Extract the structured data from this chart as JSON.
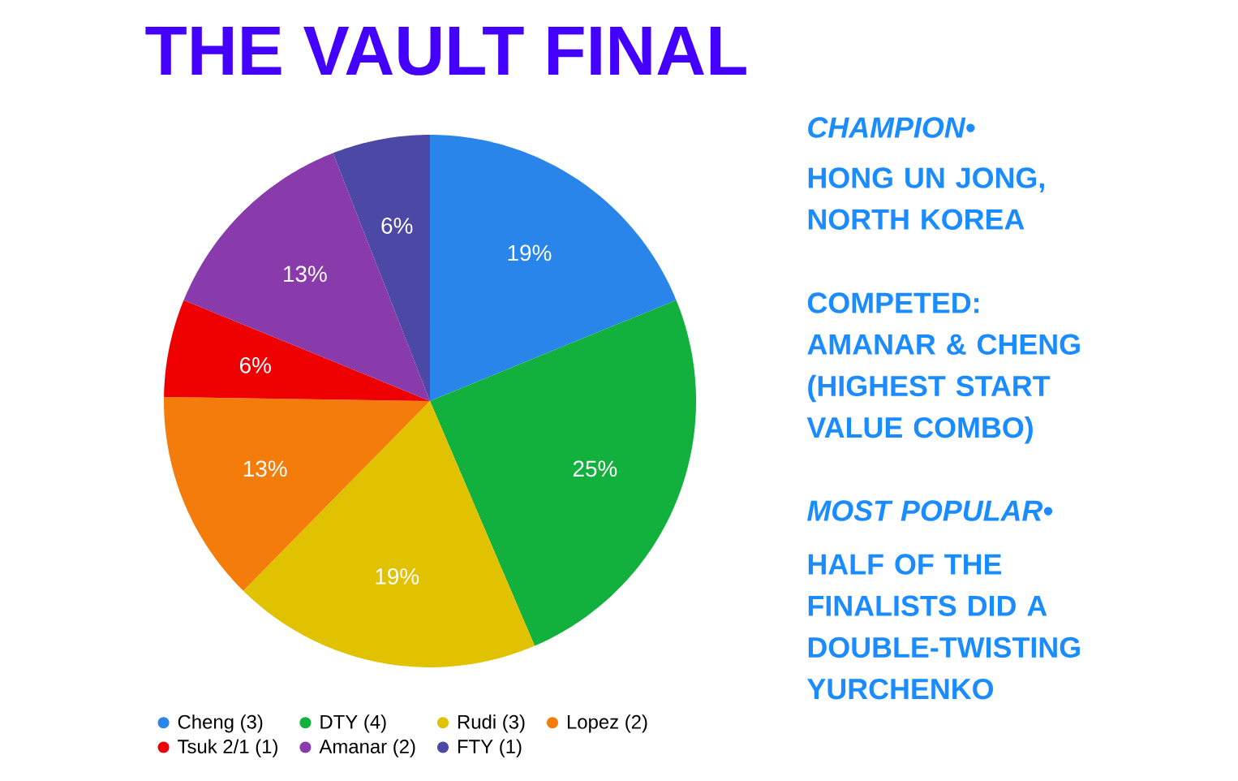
{
  "chart_data": {
    "type": "pie",
    "title": "THE VAULT FINAL",
    "categories": [
      "Cheng (3)",
      "DTY (4)",
      "Rudi (3)",
      "Lopez (2)",
      "Tsuk 2/1 (1)",
      "Amanar (2)",
      "FTY (1)"
    ],
    "values": [
      19,
      25,
      19,
      13,
      6,
      13,
      6
    ],
    "colors": [
      "#2a85ea",
      "#12b13d",
      "#e0c200",
      "#f47c0a",
      "#ee0000",
      "#8a3bab",
      "#4c48a6"
    ],
    "value_labels": [
      "19%",
      "25%",
      "19%",
      "13%",
      "6%",
      "13%",
      "6%"
    ],
    "legend": "bottom",
    "annotations": [
      "CHAMPION•",
      "HONG UN JONG, NORTH KOREA",
      "COMPETED: AMANAR & CHENG (HIGHEST START VALUE COMBO)",
      "MOST POPULAR•",
      "HALF OF THE FINALISTS DID A DOUBLE-TWISTING YURCHENKO"
    ]
  }
}
